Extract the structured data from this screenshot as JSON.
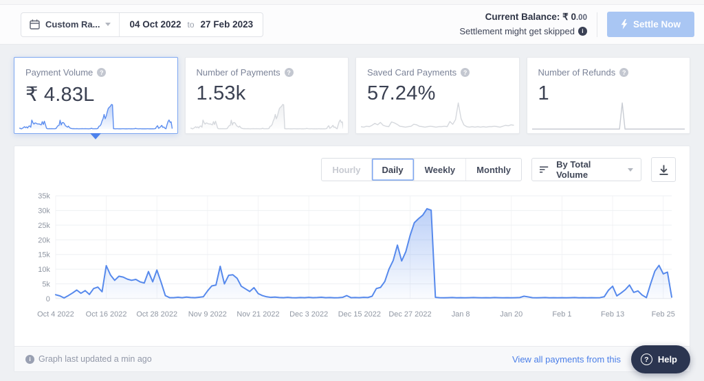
{
  "header": {
    "range_label": "Custom Ra...",
    "date_from": "04 Oct 2022",
    "to_word": "to",
    "date_to": "27 Feb 2023",
    "balance_label": "Current Balance:",
    "balance_whole": " ₹ 0",
    "balance_fraction": ".00",
    "settlement_note": "Settlement might get skipped",
    "settle_button": "Settle Now"
  },
  "icons": {
    "help_glyph": "?",
    "info_glyph": "i"
  },
  "cards": [
    {
      "title": "Payment Volume",
      "value": "₹ 4.83L",
      "selected": true,
      "spark_ref": "main",
      "spark_color": "#5b8def",
      "spark_fill": true
    },
    {
      "title": "Number of Payments",
      "value": "1.53k",
      "selected": false,
      "spark_ref": "main",
      "spark_color": "#d5d8dd",
      "spark_fill": true
    },
    {
      "title": "Saved Card Payments",
      "value": "57.24%",
      "selected": false,
      "spark": [
        5,
        4,
        6,
        5,
        8,
        12,
        9,
        14,
        8,
        6,
        5,
        15,
        13,
        10,
        6,
        5,
        4,
        5,
        6,
        10,
        9,
        6,
        5,
        4,
        5,
        6,
        5,
        4,
        5,
        5,
        6,
        5,
        16,
        10,
        20,
        55,
        22,
        9,
        5,
        4,
        5,
        4,
        5,
        4,
        5,
        4,
        5,
        5,
        6,
        5,
        4,
        6,
        8,
        7,
        9,
        8
      ],
      "spark_color": "#d5d8dd",
      "spark_fill": false
    },
    {
      "title": "Number of Refunds",
      "value": "1",
      "selected": false,
      "spark": [
        0,
        0,
        0,
        0,
        0,
        0,
        0,
        0,
        0,
        0,
        0,
        0,
        0,
        0,
        0,
        0,
        0,
        0,
        0,
        0,
        0,
        0,
        0,
        0,
        0,
        0,
        0,
        0,
        0,
        0,
        0,
        0,
        0,
        30,
        0,
        0,
        0,
        0,
        0,
        0,
        0,
        0,
        0,
        0,
        0,
        0,
        0,
        0,
        0,
        0,
        0,
        0,
        0,
        0,
        0,
        0,
        0
      ],
      "spark_color": "#c8ccd3",
      "spark_fill": false
    }
  ],
  "chart_controls": {
    "tabs": [
      {
        "label": "Hourly",
        "state": "disabled"
      },
      {
        "label": "Daily",
        "state": "active"
      },
      {
        "label": "Weekly",
        "state": "normal"
      },
      {
        "label": "Monthly",
        "state": "normal"
      }
    ],
    "sort_label": "By Total Volume"
  },
  "chart_data": {
    "type": "area",
    "title": "",
    "granularity": "Daily",
    "start_date": "Oct 4 2022",
    "end_date": "Feb 27 2023",
    "unit": "thousands",
    "ylim_k": [
      0,
      35
    ],
    "y_ticks_k": [
      0,
      5,
      10,
      15,
      20,
      25,
      30,
      35
    ],
    "y_tick_labels": [
      "0",
      "5k",
      "10k",
      "15k",
      "20k",
      "25k",
      "30k",
      "35k"
    ],
    "x_tick_indices": [
      0,
      12,
      24,
      36,
      48,
      60,
      72,
      84,
      96,
      108,
      120,
      132,
      144
    ],
    "x_tick_labels": [
      "Oct 4 2022",
      "Oct 16 2022",
      "Oct 28 2022",
      "Nov 9 2022",
      "Nov 21 2022",
      "Dec 3 2022",
      "Dec 15 2022",
      "Dec 27 2022",
      "Jan 8",
      "Jan 20",
      "Feb 1",
      "Feb 13",
      "Feb 25"
    ],
    "grid": true,
    "legend": "none",
    "line_color": "#5689ec",
    "values_k": [
      1.3,
      0.9,
      0.2,
      1.0,
      1.9,
      2.9,
      1.8,
      2.7,
      1.4,
      3.4,
      3.9,
      2.3,
      11.2,
      8.0,
      6.2,
      7.6,
      7.3,
      6.6,
      6.2,
      6.5,
      5.7,
      5.3,
      9.2,
      5.7,
      9.7,
      5.5,
      1.0,
      0.3,
      0.3,
      0.45,
      0.3,
      0.5,
      0.35,
      0.3,
      0.45,
      0.6,
      2.6,
      4.3,
      4.6,
      11.0,
      5.0,
      7.9,
      8.1,
      6.9,
      4.2,
      3.3,
      2.4,
      3.7,
      1.7,
      1.0,
      0.6,
      0.4,
      0.5,
      0.35,
      0.3,
      0.4,
      0.3,
      0.25,
      0.35,
      0.3,
      0.4,
      0.3,
      0.35,
      0.45,
      0.3,
      0.35,
      0.25,
      0.3,
      0.4,
      1.0,
      0.3,
      0.35,
      0.3,
      0.4,
      0.35,
      0.8,
      3.4,
      3.8,
      5.8,
      10.0,
      13.0,
      18.2,
      12.8,
      16.0,
      21.5,
      25.8,
      27.2,
      28.4,
      30.6,
      30.1,
      0.4,
      0.3,
      0.25,
      0.3,
      0.35,
      0.25,
      0.3,
      0.25,
      0.3,
      0.35,
      0.3,
      0.25,
      0.3,
      0.25,
      0.35,
      0.3,
      0.25,
      0.3,
      0.25,
      0.3,
      0.35,
      0.8,
      0.55,
      0.3,
      0.25,
      0.3,
      0.35,
      0.25,
      0.3,
      0.25,
      0.3,
      0.25,
      0.3,
      0.35,
      0.25,
      0.3,
      0.25,
      0.3,
      0.25,
      0.3,
      0.6,
      2.8,
      4.2,
      0.9,
      1.9,
      3.0,
      4.6,
      2.1,
      2.6,
      1.2,
      0.3,
      5.0,
      9.3,
      11.3,
      8.4,
      9.0,
      0.5
    ]
  },
  "footer": {
    "updated_text": "Graph last updated a min ago",
    "link_text": "View all payments from this",
    "help_label": "Help"
  },
  "colors": {
    "accent_blue": "#4a7ee8",
    "settle_button_bg": "#a9c6f3",
    "selected_card_border": "#7da6f0",
    "help_pill_bg": "#2b3550",
    "axis_label": "#9097a3"
  }
}
